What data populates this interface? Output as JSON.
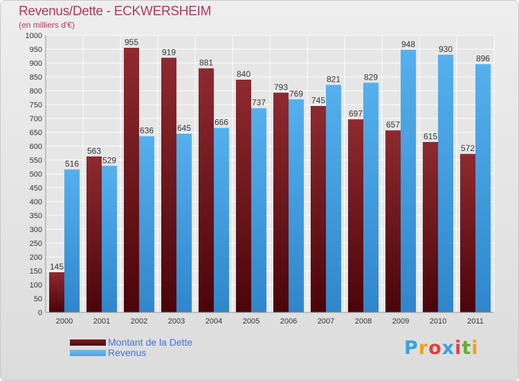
{
  "title": "Revenus/Dette - ECKWERSHEIM",
  "subtitle": "(en milliers d'€)",
  "colors": {
    "dette": "#7a1f24",
    "revenus": "#4aa3e6",
    "title": "#b03a5b"
  },
  "legend": {
    "dette_label": "Montant de la Dette",
    "revenus_label": "Revenus"
  },
  "logo": {
    "letters": [
      "P",
      "r",
      "o",
      "x",
      "i",
      "t",
      "i"
    ],
    "colors": [
      "#3aa0e0",
      "#f0a020",
      "#e04040",
      "#3aa0e0",
      "#e04040",
      "#60b030",
      "#f0a020"
    ]
  },
  "chart_data": {
    "type": "bar",
    "categories": [
      "2000",
      "2001",
      "2002",
      "2003",
      "2004",
      "2005",
      "2006",
      "2007",
      "2008",
      "2009",
      "2010",
      "2011"
    ],
    "series": [
      {
        "name": "Montant de la Dette",
        "values": [
          145,
          563,
          955,
          919,
          881,
          840,
          793,
          745,
          697,
          657,
          615,
          572
        ]
      },
      {
        "name": "Revenus",
        "values": [
          516,
          529,
          636,
          645,
          666,
          737,
          769,
          821,
          829,
          948,
          930,
          896
        ]
      }
    ],
    "ylim": [
      0,
      1000
    ],
    "yticks": [
      0,
      50,
      100,
      150,
      200,
      250,
      300,
      350,
      400,
      450,
      500,
      550,
      600,
      650,
      700,
      750,
      800,
      850,
      900,
      950,
      1000
    ],
    "grid": true,
    "xlabel": "",
    "ylabel": ""
  }
}
